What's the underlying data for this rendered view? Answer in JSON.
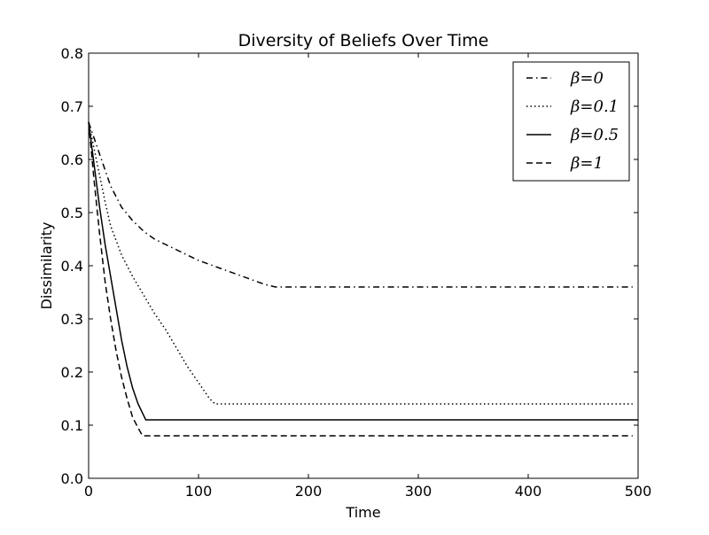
{
  "chart_data": {
    "type": "line",
    "title": "Diversity of Beliefs Over Time",
    "xlabel": "Time",
    "ylabel": "Dissimilarity",
    "xlim": [
      0,
      500
    ],
    "ylim": [
      0,
      0.8
    ],
    "xticks": [
      0,
      100,
      200,
      300,
      400,
      500
    ],
    "yticks": [
      0.0,
      0.1,
      0.2,
      0.3,
      0.4,
      0.5,
      0.6,
      0.7,
      0.8
    ],
    "xtick_labels": [
      "0",
      "100",
      "200",
      "300",
      "400",
      "500"
    ],
    "ytick_labels": [
      "0.0",
      "0.1",
      "0.2",
      "0.3",
      "0.4",
      "0.5",
      "0.6",
      "0.7",
      "0.8"
    ],
    "grid": false,
    "legend_position": "top-right",
    "series": [
      {
        "name": "β=0",
        "linestyle": "dashdot",
        "color": "#000000",
        "x": [
          0,
          5,
          10,
          15,
          20,
          30,
          40,
          50,
          60,
          70,
          80,
          100,
          120,
          140,
          160,
          170,
          200,
          250,
          300,
          350,
          400,
          450,
          495
        ],
        "y": [
          0.67,
          0.64,
          0.61,
          0.58,
          0.55,
          0.51,
          0.485,
          0.465,
          0.45,
          0.44,
          0.43,
          0.41,
          0.395,
          0.38,
          0.365,
          0.36,
          0.36,
          0.36,
          0.36,
          0.36,
          0.36,
          0.36,
          0.36
        ]
      },
      {
        "name": "β=0.1",
        "linestyle": "dotted",
        "color": "#000000",
        "x": [
          0,
          5,
          10,
          15,
          20,
          30,
          40,
          50,
          60,
          70,
          80,
          90,
          100,
          110,
          115,
          150,
          200,
          300,
          400,
          495
        ],
        "y": [
          0.67,
          0.62,
          0.57,
          0.52,
          0.475,
          0.42,
          0.38,
          0.345,
          0.31,
          0.28,
          0.245,
          0.21,
          0.18,
          0.15,
          0.14,
          0.14,
          0.14,
          0.14,
          0.14,
          0.14
        ]
      },
      {
        "name": "β=0.5",
        "linestyle": "solid",
        "color": "#000000",
        "x": [
          0,
          5,
          10,
          15,
          20,
          25,
          30,
          35,
          40,
          45,
          52,
          100,
          200,
          300,
          400,
          500
        ],
        "y": [
          0.67,
          0.59,
          0.51,
          0.44,
          0.38,
          0.32,
          0.26,
          0.21,
          0.17,
          0.14,
          0.11,
          0.11,
          0.11,
          0.11,
          0.11,
          0.11
        ]
      },
      {
        "name": "β=1",
        "linestyle": "dashed",
        "color": "#000000",
        "x": [
          0,
          5,
          10,
          15,
          20,
          25,
          30,
          35,
          40,
          45,
          49,
          100,
          200,
          300,
          400,
          495
        ],
        "y": [
          0.67,
          0.56,
          0.46,
          0.37,
          0.3,
          0.24,
          0.19,
          0.15,
          0.115,
          0.095,
          0.08,
          0.08,
          0.08,
          0.08,
          0.08,
          0.08
        ]
      }
    ]
  }
}
